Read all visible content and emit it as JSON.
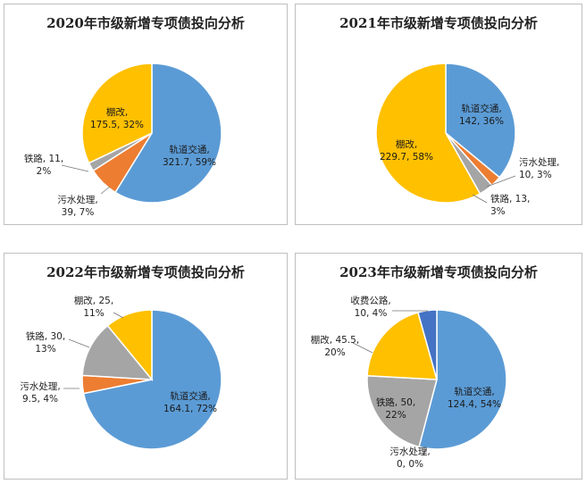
{
  "colors": {
    "rail": "#5b9bd5",
    "shanty": "#ffc000",
    "sewage": "#ed7d31",
    "railway": "#a5a5a5",
    "toll_road": "#4472c4"
  },
  "chart_data": [
    {
      "type": "pie",
      "title": "2020年市级新增专项债投向分析",
      "slices": [
        {
          "name": "轨道交通",
          "value": 321.7,
          "percent": "59%",
          "label_line1": "轨道交通,",
          "label_line2": "321.7, 59%",
          "color_key": "rail"
        },
        {
          "name": "污水处理",
          "value": 39,
          "percent": "7%",
          "label_line1": "污水处理,",
          "label_line2": "39, 7%",
          "color_key": "sewage"
        },
        {
          "name": "铁路",
          "value": 11,
          "percent": "2%",
          "label_line1": "铁路, 11,",
          "label_line2": "2%",
          "color_key": "railway"
        },
        {
          "name": "棚改",
          "value": 175.5,
          "percent": "32%",
          "label_line1": "棚改,",
          "label_line2": "175.5, 32%",
          "color_key": "shanty"
        }
      ]
    },
    {
      "type": "pie",
      "title": "2021年市级新增专项债投向分析",
      "slices": [
        {
          "name": "轨道交通",
          "value": 142,
          "percent": "36%",
          "label_line1": "轨道交通,",
          "label_line2": "142, 36%",
          "color_key": "rail"
        },
        {
          "name": "污水处理",
          "value": 10,
          "percent": "3%",
          "label_line1": "污水处理,",
          "label_line2": "10, 3%",
          "color_key": "sewage"
        },
        {
          "name": "铁路",
          "value": 13,
          "percent": "3%",
          "label_line1": "铁路, 13,",
          "label_line2": "3%",
          "color_key": "railway"
        },
        {
          "name": "棚改",
          "value": 229.7,
          "percent": "58%",
          "label_line1": "棚改,",
          "label_line2": "229.7, 58%",
          "color_key": "shanty"
        }
      ]
    },
    {
      "type": "pie",
      "title": "2022年市级新增专项债投向分析",
      "slices": [
        {
          "name": "轨道交通",
          "value": 164.1,
          "percent": "72%",
          "label_line1": "轨道交通,",
          "label_line2": "164.1, 72%",
          "color_key": "rail"
        },
        {
          "name": "污水处理",
          "value": 9.5,
          "percent": "4%",
          "label_line1": "污水处理,",
          "label_line2": "9.5, 4%",
          "color_key": "sewage"
        },
        {
          "name": "铁路",
          "value": 30,
          "percent": "13%",
          "label_line1": "铁路, 30,",
          "label_line2": "13%",
          "color_key": "railway"
        },
        {
          "name": "棚改",
          "value": 25,
          "percent": "11%",
          "label_line1": "棚改, 25,",
          "label_line2": "11%",
          "color_key": "shanty"
        }
      ]
    },
    {
      "type": "pie",
      "title": "2023年市级新增专项债投向分析",
      "slices": [
        {
          "name": "轨道交通",
          "value": 124.4,
          "percent": "54%",
          "label_line1": "轨道交通,",
          "label_line2": "124.4, 54%",
          "color_key": "rail"
        },
        {
          "name": "污水处理",
          "value": 0,
          "percent": "0%",
          "label_line1": "污水处理,",
          "label_line2": "0, 0%",
          "color_key": "sewage"
        },
        {
          "name": "铁路",
          "value": 50,
          "percent": "22%",
          "label_line1": "铁路, 50,",
          "label_line2": "22%",
          "color_key": "railway"
        },
        {
          "name": "棚改",
          "value": 45.5,
          "percent": "20%",
          "label_line1": "棚改, 45.5,",
          "label_line2": "20%",
          "color_key": "shanty"
        },
        {
          "name": "收费公路",
          "value": 10,
          "percent": "4%",
          "label_line1": "收费公路,",
          "label_line2": "10, 4%",
          "color_key": "toll_road"
        }
      ]
    }
  ]
}
